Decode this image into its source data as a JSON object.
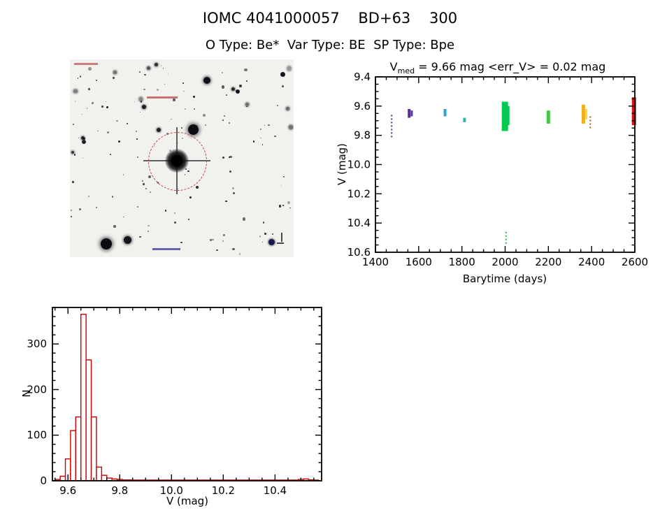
{
  "page": {
    "title": "IOMC 4041000057    BD+63    300",
    "subtitle": "O Type: Be*  Var Type: BE  SP Type: Bpe"
  },
  "lightcurve": {
    "title_prefix": "V",
    "title_sub": "med",
    "title_rest": " = 9.66 mag <err_V> = 0.02 mag",
    "xlabel": "Barytime (days)",
    "ylabel": "V (mag)"
  },
  "histogram": {
    "xlabel": "V (mag)",
    "ylabel": "N"
  },
  "chart_data": [
    {
      "type": "scatter",
      "title": "V_med = 9.66 mag <err_V> = 0.02 mag",
      "xlabel": "Barytime (days)",
      "ylabel": "V (mag)",
      "xlim": [
        1400,
        2600
      ],
      "ylim": [
        9.4,
        10.6
      ],
      "y_axis_inverted": true,
      "grid": false,
      "x_minor_step": 50,
      "y_minor_step": 0.05,
      "xtick_labels": [
        "1400",
        "1600",
        "1800",
        "2000",
        "2200",
        "2400",
        "2600"
      ],
      "ytick_labels": [
        "9.4",
        "9.6",
        "9.8",
        "10.0",
        "10.2",
        "10.4",
        "10.6"
      ],
      "median_v_mag": 9.66,
      "mean_err_v_mag": 0.02,
      "clusters": [
        {
          "x": 1475,
          "y_min": 9.66,
          "y_max": 9.82,
          "color": "#3c3c78",
          "width": 2,
          "style": "dotted"
        },
        {
          "x": 1556,
          "y_min": 9.62,
          "y_max": 9.68,
          "color": "#5a2d91",
          "width": 4,
          "style": "solid"
        },
        {
          "x": 1568,
          "y_min": 9.63,
          "y_max": 9.67,
          "color": "#4a3fb0",
          "width": 3,
          "style": "solid"
        },
        {
          "x": 1722,
          "y_min": 9.62,
          "y_max": 9.67,
          "color": "#2aa5d8",
          "width": 4,
          "style": "solid"
        },
        {
          "x": 1812,
          "y_min": 9.68,
          "y_max": 9.71,
          "color": "#2fb3ae",
          "width": 4,
          "style": "solid"
        },
        {
          "x": 1999,
          "y_min": 9.57,
          "y_max": 9.77,
          "color": "#00c94f",
          "width": 9,
          "style": "solid"
        },
        {
          "x": 2012,
          "y_min": 9.6,
          "y_max": 9.73,
          "color": "#00c94f",
          "width": 5,
          "style": "solid"
        },
        {
          "x": 2004,
          "y_min": 10.46,
          "y_max": 10.55,
          "color": "#21b24b",
          "width": 2,
          "style": "dotted"
        },
        {
          "x": 2200,
          "y_min": 9.63,
          "y_max": 9.72,
          "color": "#46c846",
          "width": 5,
          "style": "solid"
        },
        {
          "x": 2362,
          "y_min": 9.59,
          "y_max": 9.72,
          "color": "#f0ad1d",
          "width": 5,
          "style": "solid"
        },
        {
          "x": 2375,
          "y_min": 9.62,
          "y_max": 9.69,
          "color": "#ffd23f",
          "width": 3,
          "style": "solid"
        },
        {
          "x": 2394,
          "y_min": 9.67,
          "y_max": 9.76,
          "color": "#b05518",
          "width": 2,
          "style": "dotted"
        },
        {
          "x": 2596,
          "y_min": 9.54,
          "y_max": 9.73,
          "color": "#e01010",
          "width": 6,
          "style": "solid"
        }
      ]
    },
    {
      "type": "bar",
      "title": "",
      "xlabel": "V (mag)",
      "ylabel": "N",
      "xlim": [
        9.54,
        10.58
      ],
      "ylim": [
        0,
        380
      ],
      "grid": false,
      "color": "#cc0000",
      "x_minor_step": 0.05,
      "y_minor_step": 20,
      "xtick_labels": [
        "9.6",
        "9.8",
        "10.0",
        "10.2",
        "10.4"
      ],
      "ytick_labels": [
        "0",
        "100",
        "200",
        "300"
      ],
      "bin_start": 9.55,
      "bin_width": 0.02,
      "counts": [
        3,
        10,
        48,
        110,
        140,
        365,
        265,
        140,
        30,
        12,
        6,
        4,
        3,
        2,
        2,
        1,
        1,
        0,
        0,
        0,
        0,
        0,
        0,
        0,
        0,
        0,
        0,
        0,
        0,
        0,
        0,
        0,
        0,
        0,
        0,
        0,
        0,
        0,
        0,
        0,
        0,
        0,
        0,
        0,
        0,
        0,
        0,
        3,
        4,
        2,
        0
      ]
    }
  ]
}
